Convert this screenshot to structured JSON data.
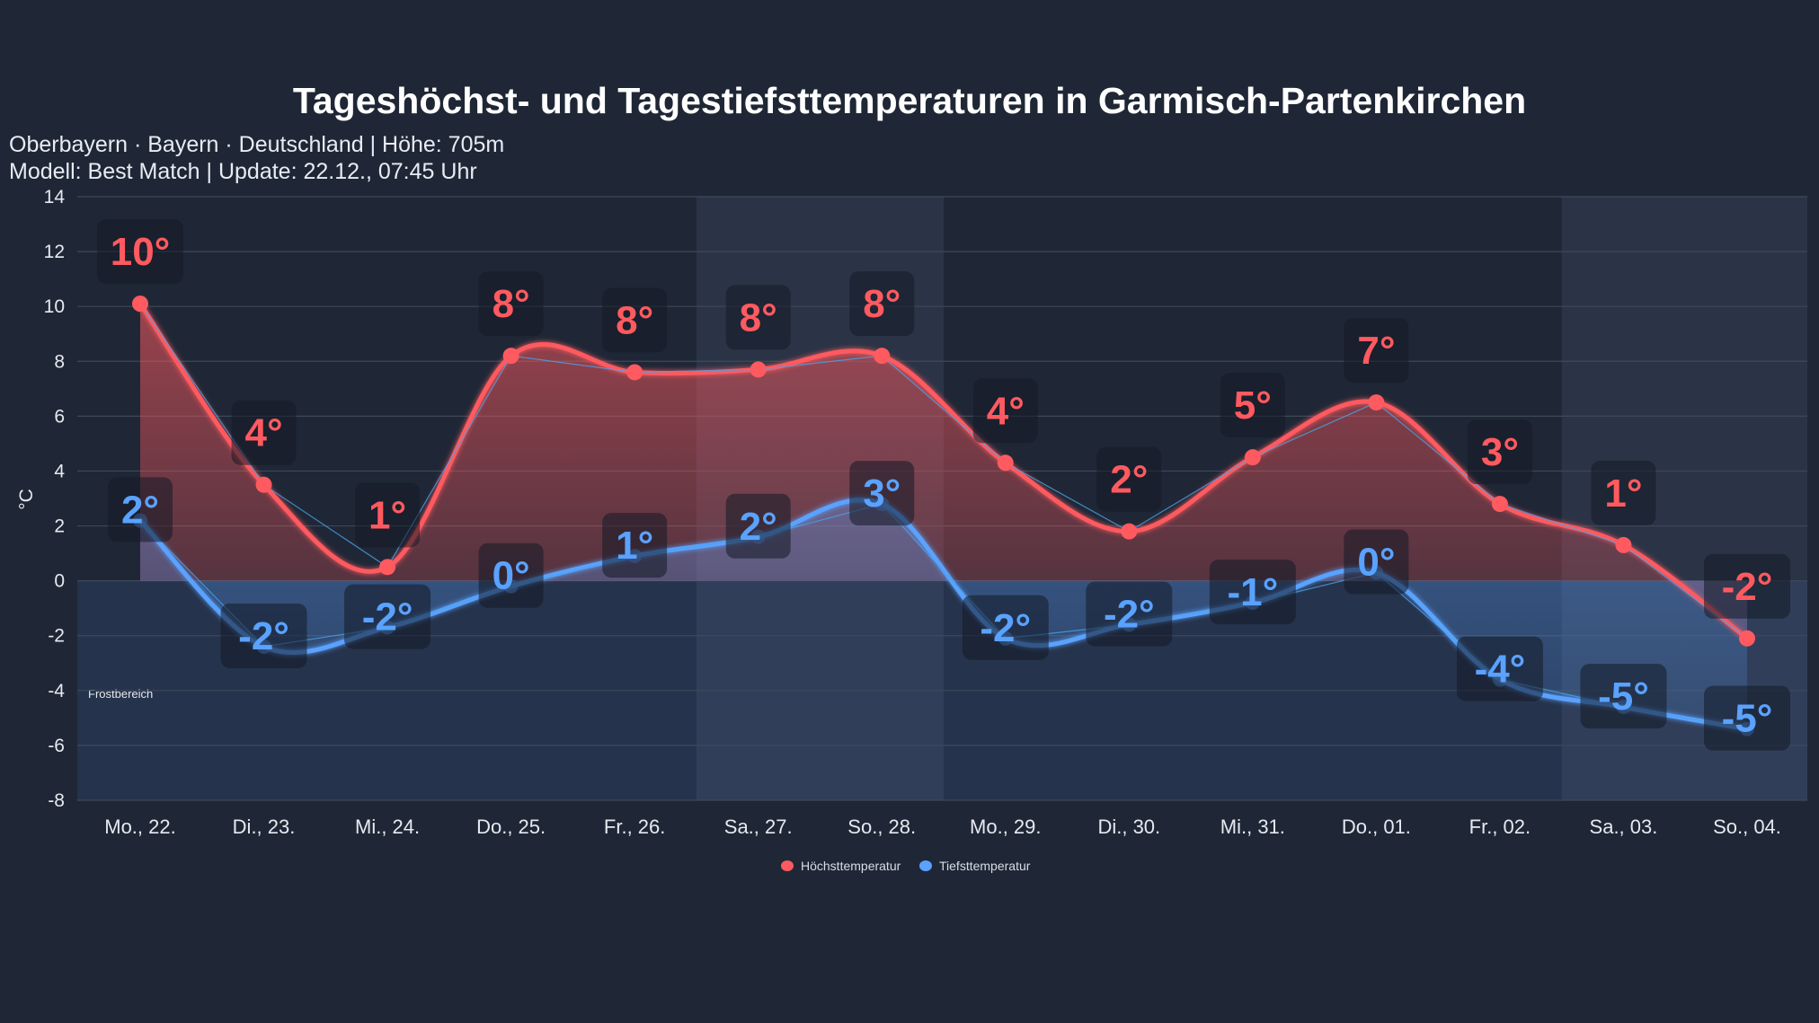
{
  "chart_data": {
    "type": "line",
    "title": "Tageshöchst- und Tagestiefsttemperaturen in Garmisch-Partenkirchen",
    "subtitle_lines": [
      "Oberbayern · Bayern · Deutschland | Höhe: 705m",
      "Modell: Best Match | Update: 22.12., 07:45 Uhr"
    ],
    "ylabel": "°C",
    "ylim": [
      -8,
      14
    ],
    "yticks": [
      14,
      12,
      10,
      8,
      6,
      4,
      2,
      0,
      -2,
      -4,
      -6,
      -8
    ],
    "grid": true,
    "legend_position": "bottom",
    "categories": [
      "Mo., 22.",
      "Di., 23.",
      "Mi., 24.",
      "Do., 25.",
      "Fr., 26.",
      "Sa., 27.",
      "So., 28.",
      "Mo., 29.",
      "Di., 30.",
      "Mi., 31.",
      "Do., 01.",
      "Fr., 02.",
      "Sa., 03.",
      "So., 04."
    ],
    "weekend_bands": [
      [
        "Sa., 27.",
        "So., 28."
      ],
      [
        "Sa., 03.",
        "So., 04."
      ]
    ],
    "frost_zone_label": "Frostbereich",
    "series": [
      {
        "name": "Höchsttemperatur",
        "color": "#ff5a5f",
        "values": [
          10.1,
          3.5,
          0.5,
          8.2,
          7.6,
          7.7,
          8.2,
          4.3,
          1.8,
          4.5,
          6.5,
          2.8,
          1.3,
          -2.1
        ],
        "labels": [
          "10°",
          "4°",
          "1°",
          "8°",
          "8°",
          "8°",
          "8°",
          "4°",
          "2°",
          "5°",
          "7°",
          "3°",
          "1°",
          "-2°"
        ]
      },
      {
        "name": "Tiefsttemperatur",
        "color": "#5aa2ff",
        "values": [
          2.2,
          -2.4,
          -1.7,
          -0.2,
          0.9,
          1.6,
          2.8,
          -2.1,
          -1.6,
          -0.8,
          0.3,
          -3.6,
          -4.6,
          -5.4
        ],
        "labels": [
          "2°",
          "-2°",
          "-2°",
          "0°",
          "1°",
          "2°",
          "3°",
          "-2°",
          "-2°",
          "-1°",
          "0°",
          "-4°",
          "-5°",
          "-5°"
        ]
      }
    ]
  }
}
